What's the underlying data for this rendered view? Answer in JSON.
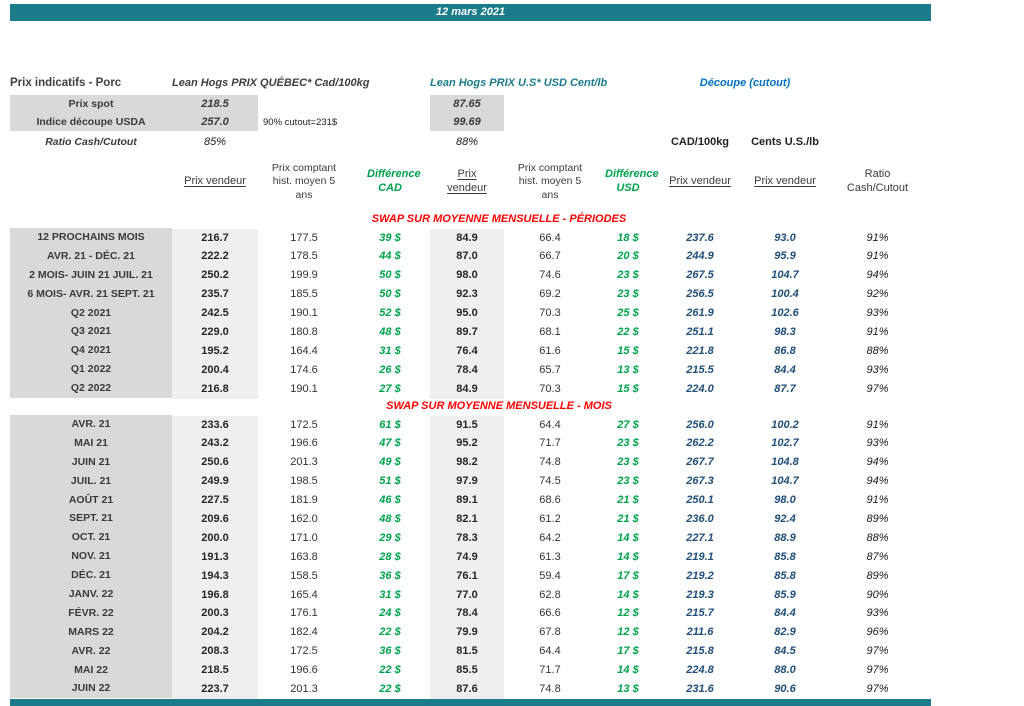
{
  "banner": {
    "date": "12 mars 2021"
  },
  "header": {
    "left_title": "Prix indicatifs - Porc",
    "quebec_title": "Lean Hogs PRIX QUÉBEC* Cad/100kg",
    "us_title": "Lean Hogs PRIX U.S* USD Cent/lb",
    "cutout_title": "Découpe (cutout)",
    "spot": {
      "label": "Prix spot",
      "cad": "218.5",
      "usd": "87.65"
    },
    "indice": {
      "label": "Indice découpe USDA",
      "cad": "257.0",
      "note": "90% cutout=231$",
      "usd": "99.69"
    },
    "ratio": {
      "label": "Ratio Cash/Cutout",
      "cad": "85%",
      "usd": "88%"
    },
    "cutout_cad_unit": "CAD/100kg",
    "cutout_usd_unit": "Cents U.S./lb"
  },
  "table": {
    "headers": {
      "cad_vendeur": "Prix vendeur",
      "cad_hist": "Prix comptant hist. moyen 5 ans",
      "diff_cad": "Différence CAD",
      "usd_vendeur": "Prix vendeur",
      "usd_hist": "Prix comptant hist. moyen 5 ans",
      "diff_usd": "Différence USD",
      "cutout_cad": "Prix vendeur",
      "cutout_usd": "Prix vendeur",
      "ratio": "Ratio Cash/Cutout"
    },
    "sections": [
      {
        "title": "SWAP SUR MOYENNE MENSUELLE - PÉRIODES",
        "rows": [
          {
            "label": "12 PROCHAINS MOIS",
            "cells": [
              "216.7",
              "177.5",
              "39 $",
              "84.9",
              "66.4",
              "18 $",
              "237.6",
              "93.0",
              "91%"
            ]
          },
          {
            "label": "AVR. 21 -  DÉC. 21",
            "cells": [
              "222.2",
              "178.5",
              "44 $",
              "87.0",
              "66.7",
              "20 $",
              "244.9",
              "95.9",
              "91%"
            ]
          },
          {
            "label": "2 MOIS- JUIN 21 JUIL. 21",
            "cells": [
              "250.2",
              "199.9",
              "50 $",
              "98.0",
              "74.6",
              "23 $",
              "267.5",
              "104.7",
              "94%"
            ]
          },
          {
            "label": "6 MOIS- AVR. 21 SEPT. 21",
            "cells": [
              "235.7",
              "185.5",
              "50 $",
              "92.3",
              "69.2",
              "23 $",
              "256.5",
              "100.4",
              "92%"
            ]
          },
          {
            "label": "Q2 2021",
            "cells": [
              "242.5",
              "190.1",
              "52 $",
              "95.0",
              "70.3",
              "25 $",
              "261.9",
              "102.6",
              "93%"
            ]
          },
          {
            "label": "Q3 2021",
            "cells": [
              "229.0",
              "180.8",
              "48 $",
              "89.7",
              "68.1",
              "22 $",
              "251.1",
              "98.3",
              "91%"
            ]
          },
          {
            "label": "Q4 2021",
            "cells": [
              "195.2",
              "164.4",
              "31 $",
              "76.4",
              "61.6",
              "15 $",
              "221.8",
              "86.8",
              "88%"
            ]
          },
          {
            "label": "Q1 2022",
            "cells": [
              "200.4",
              "174.6",
              "26 $",
              "78.4",
              "65.7",
              "13 $",
              "215.5",
              "84.4",
              "93%"
            ]
          },
          {
            "label": "Q2 2022",
            "cells": [
              "216.8",
              "190.1",
              "27 $",
              "84.9",
              "70.3",
              "15 $",
              "224.0",
              "87.7",
              "97%"
            ]
          }
        ]
      },
      {
        "title": "SWAP SUR MOYENNE MENSUELLE - MOIS",
        "rows": [
          {
            "label": "AVR. 21",
            "cells": [
              "233.6",
              "172.5",
              "61 $",
              "91.5",
              "64.4",
              "27 $",
              "256.0",
              "100.2",
              "91%"
            ]
          },
          {
            "label": "MAI 21",
            "cells": [
              "243.2",
              "196.6",
              "47 $",
              "95.2",
              "71.7",
              "23 $",
              "262.2",
              "102.7",
              "93%"
            ]
          },
          {
            "label": "JUIN 21",
            "cells": [
              "250.6",
              "201.3",
              "49 $",
              "98.2",
              "74.8",
              "23 $",
              "267.7",
              "104.8",
              "94%"
            ]
          },
          {
            "label": "JUIL. 21",
            "cells": [
              "249.9",
              "198.5",
              "51 $",
              "97.9",
              "74.5",
              "23 $",
              "267.3",
              "104.7",
              "94%"
            ]
          },
          {
            "label": "AOÛT 21",
            "cells": [
              "227.5",
              "181.9",
              "46 $",
              "89.1",
              "68.6",
              "21 $",
              "250.1",
              "98.0",
              "91%"
            ]
          },
          {
            "label": "SEPT. 21",
            "cells": [
              "209.6",
              "162.0",
              "48 $",
              "82.1",
              "61.2",
              "21 $",
              "236.0",
              "92.4",
              "89%"
            ]
          },
          {
            "label": "OCT. 21",
            "cells": [
              "200.0",
              "171.0",
              "29 $",
              "78.3",
              "64.2",
              "14 $",
              "227.1",
              "88.9",
              "88%"
            ]
          },
          {
            "label": "NOV. 21",
            "cells": [
              "191.3",
              "163.8",
              "28 $",
              "74.9",
              "61.3",
              "14 $",
              "219.1",
              "85.8",
              "87%"
            ]
          },
          {
            "label": "DÉC. 21",
            "cells": [
              "194.3",
              "158.5",
              "36 $",
              "76.1",
              "59.4",
              "17 $",
              "219.2",
              "85.8",
              "89%"
            ]
          },
          {
            "label": "JANV. 22",
            "cells": [
              "196.8",
              "165.4",
              "31 $",
              "77.0",
              "62.8",
              "14 $",
              "219.3",
              "85.9",
              "90%"
            ]
          },
          {
            "label": "FÉVR. 22",
            "cells": [
              "200.3",
              "176.1",
              "24 $",
              "78.4",
              "66.6",
              "12 $",
              "215.7",
              "84.4",
              "93%"
            ]
          },
          {
            "label": "MARS 22",
            "cells": [
              "204.2",
              "182.4",
              "22 $",
              "79.9",
              "67.8",
              "12 $",
              "211.6",
              "82.9",
              "96%"
            ]
          },
          {
            "label": "AVR. 22",
            "cells": [
              "208.3",
              "172.5",
              "36 $",
              "81.5",
              "64.4",
              "17 $",
              "215.8",
              "84.5",
              "97%"
            ]
          },
          {
            "label": "MAI 22",
            "cells": [
              "218.5",
              "196.6",
              "22 $",
              "85.5",
              "71.7",
              "14 $",
              "224.8",
              "88.0",
              "97%"
            ]
          },
          {
            "label": "JUIN 22",
            "cells": [
              "223.7",
              "201.3",
              "22 $",
              "87.6",
              "74.8",
              "13 $",
              "231.6",
              "90.6",
              "97%"
            ]
          }
        ]
      }
    ]
  }
}
